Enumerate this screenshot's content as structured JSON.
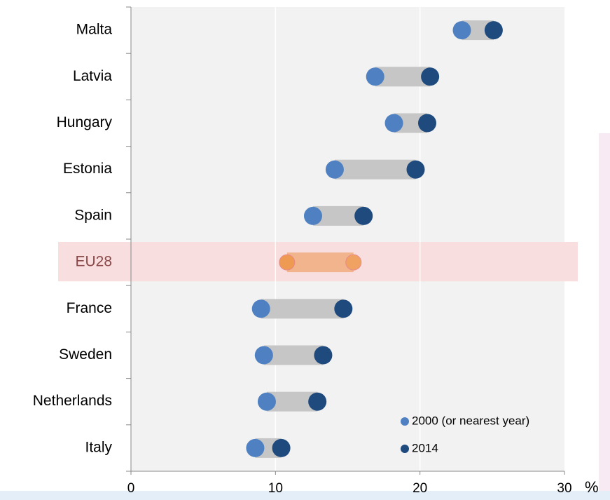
{
  "chart_data": {
    "type": "dumbbell",
    "categories": [
      "Malta",
      "Latvia",
      "Hungary",
      "Estonia",
      "Spain",
      "EU28",
      "France",
      "Sweden",
      "Netherlands",
      "Italy"
    ],
    "series": [
      {
        "name": "2000 (or nearest year)",
        "color": "#4f81c2",
        "values": [
          22.9,
          16.9,
          18.2,
          14.1,
          12.6,
          10.8,
          9.0,
          9.2,
          9.4,
          8.6
        ]
      },
      {
        "name": "2014",
        "color": "#1f4a7e",
        "values": [
          25.1,
          20.7,
          20.5,
          19.7,
          16.1,
          15.4,
          14.7,
          13.3,
          12.9,
          10.4
        ]
      }
    ],
    "connector_color": "#c6c6c6",
    "highlight": {
      "index": 5,
      "band_color": "#f8dede",
      "connector_color": "#f2b48c",
      "colors": [
        "#ee9a52",
        "#f0a262"
      ],
      "label_color": "#8a4848"
    },
    "xlim": [
      0,
      30
    ],
    "xticks": [
      0,
      10,
      20,
      30
    ],
    "x_unit": "%",
    "grid": true
  }
}
